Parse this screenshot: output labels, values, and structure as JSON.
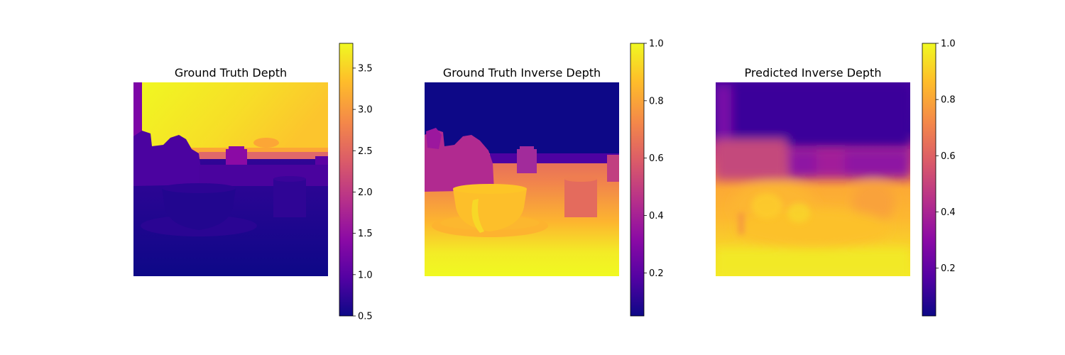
{
  "chart_data": [
    {
      "type": "heatmap",
      "title": "Ground Truth Depth",
      "colormap": "plasma",
      "axes_visible": false,
      "colorbar": {
        "range": [
          0.5,
          3.8
        ],
        "ticks": [
          0.5,
          1.0,
          1.5,
          2.0,
          2.5,
          3.0,
          3.5
        ],
        "tick_labels": [
          "0.5",
          "1.0",
          "1.5",
          "2.0",
          "2.5",
          "3.0",
          "3.5"
        ]
      }
    },
    {
      "type": "heatmap",
      "title": "Ground Truth Inverse Depth",
      "colormap": "plasma",
      "axes_visible": false,
      "colorbar": {
        "range": [
          0.05,
          1.0
        ],
        "ticks": [
          0.2,
          0.4,
          0.6,
          0.8,
          1.0
        ],
        "tick_labels": [
          "0.2",
          "0.4",
          "0.6",
          "0.8",
          "1.0"
        ]
      }
    },
    {
      "type": "heatmap",
      "title": "Predicted Inverse Depth",
      "colormap": "plasma",
      "axes_visible": false,
      "colorbar": {
        "range": [
          0.03,
          1.0
        ],
        "ticks": [
          0.2,
          0.4,
          0.6,
          0.8,
          1.0
        ],
        "tick_labels": [
          "0.2",
          "0.4",
          "0.6",
          "0.8",
          "1.0"
        ]
      }
    }
  ],
  "colors": {
    "plasma": [
      "#0d0887",
      "#5302a3",
      "#8b0aa5",
      "#b83289",
      "#db5c68",
      "#f48849",
      "#febd2a",
      "#f0f921"
    ]
  }
}
